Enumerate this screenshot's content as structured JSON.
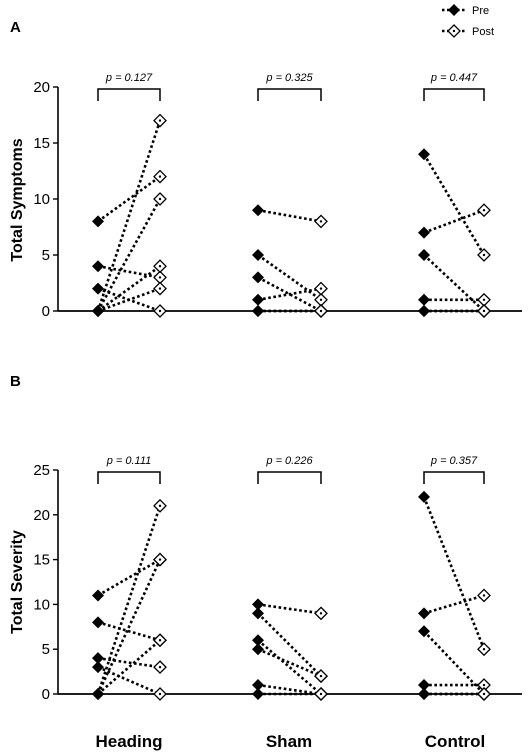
{
  "legend": {
    "items": [
      {
        "label": "Pre",
        "marker": "filled-diamond"
      },
      {
        "label": "Post",
        "marker": "open-diamond-with-dot"
      }
    ],
    "placement": "top-right"
  },
  "groups": [
    "Heading",
    "Sham",
    "Control"
  ],
  "colors": {
    "marker": "#000000",
    "background": "#ffffff"
  },
  "chart_data": [
    {
      "panel": "A",
      "type": "paired-dot",
      "ylabel": "Total Symptoms",
      "ylim": [
        0,
        20
      ],
      "yticks": [
        0,
        5,
        10,
        15,
        20
      ],
      "pvalues": [
        "p = 0.127",
        "p = 0.325",
        "p = 0.447"
      ],
      "pairs": {
        "Heading": [
          [
            8,
            12
          ],
          [
            4,
            3
          ],
          [
            2,
            0
          ],
          [
            0,
            17
          ],
          [
            0,
            10
          ],
          [
            0,
            4
          ],
          [
            0,
            2
          ]
        ],
        "Sham": [
          [
            9,
            8
          ],
          [
            5,
            1
          ],
          [
            3,
            0
          ],
          [
            1,
            2
          ],
          [
            0,
            0
          ],
          [
            0,
            0
          ]
        ],
        "Control": [
          [
            14,
            5
          ],
          [
            7,
            9
          ],
          [
            5,
            0
          ],
          [
            1,
            1
          ],
          [
            0,
            0
          ],
          [
            0,
            0
          ]
        ]
      }
    },
    {
      "panel": "B",
      "type": "paired-dot",
      "ylabel": "Total Severity",
      "ylim": [
        0,
        25
      ],
      "yticks": [
        0,
        5,
        10,
        15,
        20,
        25
      ],
      "pvalues": [
        "p = 0.111",
        "p = 0.226",
        "p = 0.357"
      ],
      "pairs": {
        "Heading": [
          [
            11,
            15
          ],
          [
            8,
            6
          ],
          [
            4,
            3
          ],
          [
            3,
            0
          ],
          [
            0,
            21
          ],
          [
            0,
            15
          ],
          [
            0,
            6
          ]
        ],
        "Sham": [
          [
            10,
            9
          ],
          [
            9,
            2
          ],
          [
            6,
            0
          ],
          [
            5,
            2
          ],
          [
            1,
            0
          ],
          [
            0,
            0
          ]
        ],
        "Control": [
          [
            22,
            5
          ],
          [
            9,
            11
          ],
          [
            7,
            0
          ],
          [
            1,
            1
          ],
          [
            0,
            0
          ],
          [
            0,
            0
          ]
        ]
      }
    }
  ]
}
